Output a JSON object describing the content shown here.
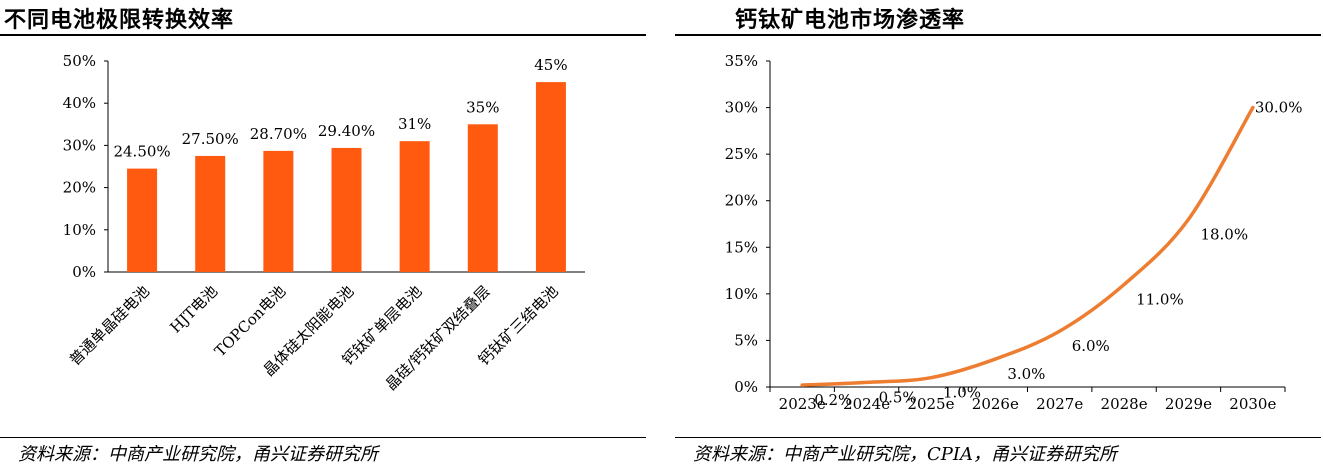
{
  "left": {
    "title": "不同电池极限转换效率",
    "source": "资料来源：中商产业研究院，甬兴证券研究所"
  },
  "right": {
    "title": "钙钛矿电池市场渗透率",
    "source": "资料来源：中商产业研究院，CPIA，甬兴证券研究所"
  },
  "colors": {
    "bar": "#FF5A0F",
    "line": "#ED7D31",
    "axis": "#000000"
  },
  "chart_data": [
    {
      "type": "bar",
      "title": "不同电池极限转换效率",
      "categories": [
        "普通单晶硅电池",
        "HJT电池",
        "TOPCon电池",
        "晶体硅太阳能电池",
        "钙钛矿单层电池",
        "晶硅/钙钛矿双结叠层",
        "钙钛矿三结电池"
      ],
      "values": [
        24.5,
        27.5,
        28.7,
        29.4,
        31,
        35,
        45
      ],
      "data_labels": [
        "24.50%",
        "27.50%",
        "28.70%",
        "29.40%",
        "31%",
        "35%",
        "45%"
      ],
      "y_ticks": [
        "0%",
        "10%",
        "20%",
        "30%",
        "40%",
        "50%"
      ],
      "ylim": [
        0,
        50
      ],
      "grid": false,
      "legend": false
    },
    {
      "type": "line",
      "title": "钙钛矿电池市场渗透率",
      "categories": [
        "2023e",
        "2024e",
        "2025e",
        "2026e",
        "2027e",
        "2028e",
        "2029e",
        "2030e"
      ],
      "values": [
        0.2,
        0.5,
        1.0,
        3.0,
        6.0,
        11.0,
        18.0,
        30.0
      ],
      "data_labels": [
        "0.2%",
        "0.5%",
        "1.0%",
        "3.0%",
        "6.0%",
        "11.0%",
        "18.0%",
        "30.0%"
      ],
      "y_ticks": [
        "0%",
        "5%",
        "10%",
        "15%",
        "20%",
        "25%",
        "30%",
        "35%"
      ],
      "ylim": [
        0,
        35
      ],
      "smooth": true,
      "grid": false,
      "legend": false
    }
  ]
}
